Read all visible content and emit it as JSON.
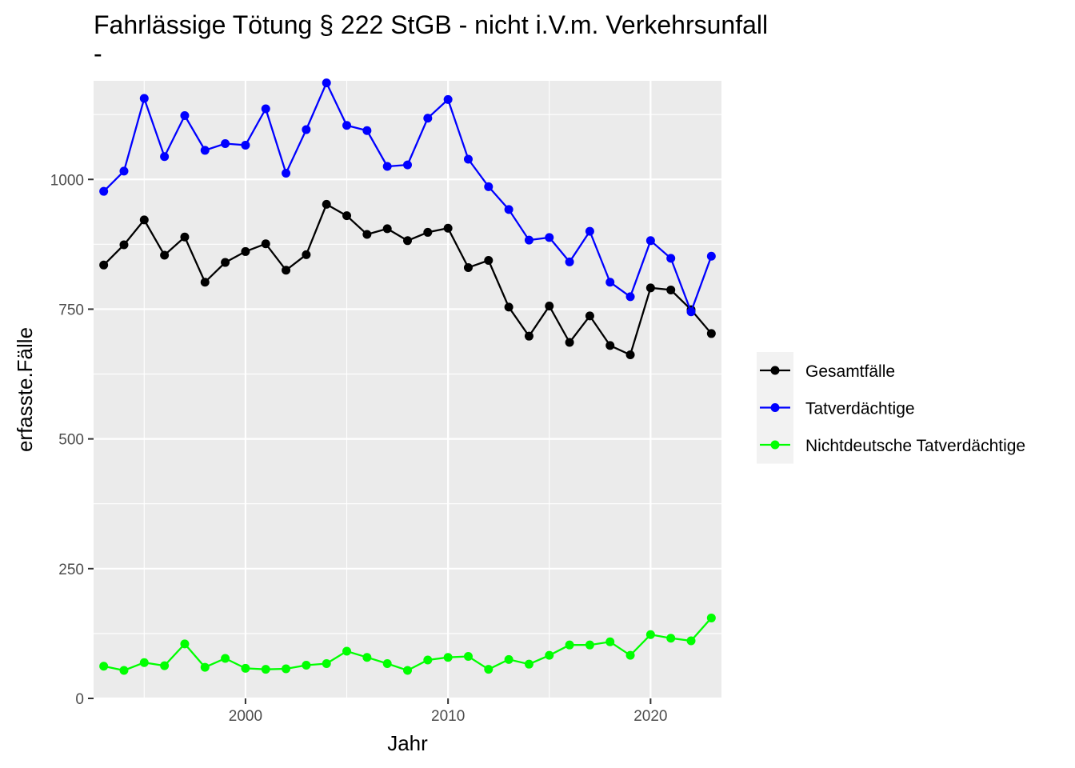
{
  "chart_data": {
    "type": "line",
    "title": "Fahrlässige Tötung § 222 StGB - nicht i.V.m. Verkehrsunfall",
    "subtitle": "-",
    "xlabel": "Jahr",
    "ylabel": "erfasste.Fälle",
    "xlim": [
      1992.5,
      2023.5
    ],
    "ylim": [
      0,
      1190
    ],
    "x_ticks": [
      2000,
      2010,
      2020
    ],
    "y_ticks": [
      0,
      250,
      500,
      750,
      1000
    ],
    "grid": true,
    "legend_position": "right",
    "x": [
      1993,
      1994,
      1995,
      1996,
      1997,
      1998,
      1999,
      2000,
      2001,
      2002,
      2003,
      2004,
      2005,
      2006,
      2007,
      2008,
      2009,
      2010,
      2011,
      2012,
      2013,
      2014,
      2015,
      2016,
      2017,
      2018,
      2019,
      2020,
      2021,
      2022,
      2023
    ],
    "series": [
      {
        "name": "Gesamtfälle",
        "color": "#000000",
        "values": [
          835,
          874,
          922,
          854,
          889,
          802,
          840,
          861,
          876,
          825,
          855,
          952,
          930,
          894,
          905,
          882,
          898,
          906,
          830,
          844,
          754,
          698,
          756,
          686,
          737,
          680,
          662,
          791,
          787,
          749,
          703
        ]
      },
      {
        "name": "Tatverdächtige",
        "color": "#0000ff",
        "values": [
          977,
          1016,
          1156,
          1044,
          1123,
          1056,
          1069,
          1066,
          1136,
          1012,
          1096,
          1186,
          1104,
          1094,
          1025,
          1028,
          1118,
          1154,
          1039,
          986,
          942,
          883,
          888,
          841,
          900,
          802,
          774,
          882,
          848,
          745,
          852
        ]
      },
      {
        "name": "Nichtdeutsche Tatverdächtige",
        "color": "#00ff00",
        "values": [
          62,
          54,
          69,
          63,
          105,
          60,
          77,
          58,
          56,
          57,
          64,
          67,
          91,
          79,
          67,
          54,
          74,
          79,
          81,
          56,
          75,
          66,
          83,
          103,
          103,
          109,
          83,
          123,
          116,
          111,
          155
        ]
      }
    ]
  },
  "panel_bg": "#ebebeb",
  "grid_color": "#ffffff",
  "legend_bg": "#f2f2f2"
}
